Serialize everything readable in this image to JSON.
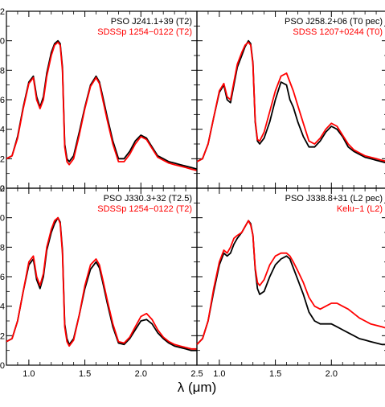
{
  "chart_data": [
    {
      "type": "line",
      "title": "",
      "xlabel": "λ (μm)",
      "ylabel": "",
      "xlim": [
        0.8,
        2.5
      ],
      "ylim": [
        0.0,
        1.2
      ],
      "grid": false,
      "legend_position": "top-right",
      "series": [
        {
          "name": "PSO J241.1+39 (T2)",
          "color": "#000000",
          "x": [
            0.8,
            0.85,
            0.9,
            0.95,
            1.0,
            1.04,
            1.07,
            1.1,
            1.13,
            1.16,
            1.2,
            1.23,
            1.26,
            1.28,
            1.3,
            1.32,
            1.34,
            1.36,
            1.4,
            1.45,
            1.5,
            1.55,
            1.6,
            1.63,
            1.66,
            1.7,
            1.75,
            1.8,
            1.85,
            1.9,
            1.95,
            2.0,
            2.05,
            2.1,
            2.15,
            2.2,
            2.25,
            2.3,
            2.35,
            2.4,
            2.45,
            2.5
          ],
          "y": [
            0.2,
            0.22,
            0.35,
            0.55,
            0.72,
            0.76,
            0.62,
            0.55,
            0.62,
            0.78,
            0.92,
            0.98,
            1.0,
            0.98,
            0.82,
            0.3,
            0.2,
            0.18,
            0.22,
            0.38,
            0.55,
            0.7,
            0.76,
            0.72,
            0.62,
            0.48,
            0.32,
            0.2,
            0.2,
            0.25,
            0.32,
            0.36,
            0.34,
            0.28,
            0.22,
            0.2,
            0.18,
            0.17,
            0.16,
            0.15,
            0.14,
            0.13
          ]
        },
        {
          "name": "SDSSp 1254−0122 (T2)",
          "color": "#ff0000",
          "x": [
            0.8,
            0.85,
            0.9,
            0.95,
            1.0,
            1.04,
            1.07,
            1.1,
            1.13,
            1.16,
            1.2,
            1.23,
            1.26,
            1.28,
            1.3,
            1.32,
            1.34,
            1.36,
            1.4,
            1.45,
            1.5,
            1.55,
            1.6,
            1.63,
            1.66,
            1.7,
            1.75,
            1.8,
            1.85,
            1.9,
            1.95,
            2.0,
            2.05,
            2.1,
            2.15,
            2.2,
            2.25,
            2.3,
            2.35,
            2.4,
            2.45,
            2.5
          ],
          "y": [
            0.2,
            0.22,
            0.34,
            0.54,
            0.71,
            0.75,
            0.6,
            0.54,
            0.6,
            0.76,
            0.9,
            0.97,
            0.99,
            0.97,
            0.8,
            0.28,
            0.18,
            0.16,
            0.2,
            0.36,
            0.54,
            0.69,
            0.75,
            0.71,
            0.6,
            0.46,
            0.3,
            0.18,
            0.18,
            0.23,
            0.3,
            0.35,
            0.33,
            0.27,
            0.21,
            0.19,
            0.17,
            0.16,
            0.15,
            0.14,
            0.13,
            0.12
          ]
        }
      ]
    },
    {
      "type": "line",
      "title": "",
      "xlabel": "λ (μm)",
      "ylabel": "",
      "xlim": [
        0.8,
        2.5
      ],
      "ylim": [
        0.0,
        1.2
      ],
      "grid": false,
      "legend_position": "top-right",
      "series": [
        {
          "name": "PSO J258.2+06 (T0 pec)",
          "color": "#000000",
          "x": [
            0.8,
            0.85,
            0.9,
            0.95,
            1.0,
            1.04,
            1.07,
            1.1,
            1.13,
            1.16,
            1.2,
            1.23,
            1.26,
            1.28,
            1.3,
            1.32,
            1.34,
            1.36,
            1.4,
            1.45,
            1.5,
            1.55,
            1.6,
            1.63,
            1.66,
            1.7,
            1.75,
            1.8,
            1.85,
            1.9,
            1.95,
            2.0,
            2.05,
            2.1,
            2.15,
            2.2,
            2.25,
            2.3,
            2.35,
            2.4,
            2.45,
            2.5
          ],
          "y": [
            0.18,
            0.2,
            0.3,
            0.48,
            0.65,
            0.7,
            0.6,
            0.58,
            0.7,
            0.82,
            0.9,
            0.96,
            1.0,
            0.98,
            0.85,
            0.45,
            0.32,
            0.3,
            0.34,
            0.45,
            0.6,
            0.72,
            0.7,
            0.6,
            0.55,
            0.45,
            0.35,
            0.28,
            0.28,
            0.32,
            0.38,
            0.42,
            0.4,
            0.35,
            0.28,
            0.25,
            0.23,
            0.21,
            0.2,
            0.19,
            0.18,
            0.17
          ]
        },
        {
          "name": "SDSS 1207+0244 (T0)",
          "color": "#ff0000",
          "x": [
            0.8,
            0.85,
            0.9,
            0.95,
            1.0,
            1.04,
            1.07,
            1.1,
            1.13,
            1.16,
            1.2,
            1.23,
            1.26,
            1.28,
            1.3,
            1.32,
            1.34,
            1.36,
            1.4,
            1.45,
            1.5,
            1.55,
            1.6,
            1.63,
            1.66,
            1.7,
            1.75,
            1.8,
            1.85,
            1.9,
            1.95,
            2.0,
            2.05,
            2.1,
            2.15,
            2.2,
            2.25,
            2.3,
            2.35,
            2.4,
            2.45,
            2.5
          ],
          "y": [
            0.18,
            0.2,
            0.3,
            0.48,
            0.66,
            0.71,
            0.62,
            0.6,
            0.72,
            0.84,
            0.92,
            0.97,
            0.99,
            0.97,
            0.84,
            0.46,
            0.33,
            0.32,
            0.38,
            0.52,
            0.66,
            0.76,
            0.78,
            0.72,
            0.66,
            0.56,
            0.44,
            0.32,
            0.3,
            0.34,
            0.4,
            0.44,
            0.42,
            0.36,
            0.3,
            0.26,
            0.24,
            0.22,
            0.21,
            0.2,
            0.19,
            0.18
          ]
        }
      ]
    },
    {
      "type": "line",
      "title": "",
      "xlabel": "λ (μm)",
      "ylabel": "",
      "xlim": [
        0.8,
        2.5
      ],
      "ylim": [
        0.0,
        1.2
      ],
      "grid": false,
      "legend_position": "top-right",
      "series": [
        {
          "name": "PSO J330.3+32 (T2.5)",
          "color": "#000000",
          "x": [
            0.8,
            0.85,
            0.9,
            0.95,
            1.0,
            1.04,
            1.07,
            1.1,
            1.13,
            1.16,
            1.2,
            1.23,
            1.26,
            1.28,
            1.3,
            1.32,
            1.34,
            1.36,
            1.4,
            1.45,
            1.5,
            1.55,
            1.6,
            1.63,
            1.66,
            1.7,
            1.75,
            1.8,
            1.85,
            1.9,
            1.95,
            2.0,
            2.05,
            2.1,
            2.15,
            2.2,
            2.25,
            2.3,
            2.35,
            2.4,
            2.45,
            2.5
          ],
          "y": [
            0.16,
            0.18,
            0.3,
            0.5,
            0.68,
            0.72,
            0.58,
            0.52,
            0.6,
            0.78,
            0.9,
            0.96,
            1.0,
            0.97,
            0.78,
            0.28,
            0.18,
            0.14,
            0.18,
            0.34,
            0.52,
            0.65,
            0.7,
            0.66,
            0.56,
            0.42,
            0.26,
            0.15,
            0.14,
            0.18,
            0.24,
            0.3,
            0.31,
            0.28,
            0.22,
            0.18,
            0.15,
            0.13,
            0.12,
            0.11,
            0.1,
            0.1
          ]
        },
        {
          "name": "SDSSp 1254−0122 (T2)",
          "color": "#ff0000",
          "x": [
            0.8,
            0.85,
            0.9,
            0.95,
            1.0,
            1.04,
            1.07,
            1.1,
            1.13,
            1.16,
            1.2,
            1.23,
            1.26,
            1.28,
            1.3,
            1.32,
            1.34,
            1.36,
            1.4,
            1.45,
            1.5,
            1.55,
            1.6,
            1.63,
            1.66,
            1.7,
            1.75,
            1.8,
            1.85,
            1.9,
            1.95,
            2.0,
            2.05,
            2.1,
            2.15,
            2.2,
            2.25,
            2.3,
            2.35,
            2.4,
            2.45,
            2.5
          ],
          "y": [
            0.16,
            0.18,
            0.3,
            0.5,
            0.7,
            0.74,
            0.6,
            0.54,
            0.62,
            0.8,
            0.92,
            0.98,
            1.0,
            0.96,
            0.76,
            0.26,
            0.16,
            0.13,
            0.17,
            0.34,
            0.54,
            0.68,
            0.72,
            0.68,
            0.58,
            0.44,
            0.28,
            0.16,
            0.15,
            0.19,
            0.26,
            0.33,
            0.35,
            0.31,
            0.24,
            0.19,
            0.16,
            0.14,
            0.13,
            0.12,
            0.11,
            0.11
          ]
        }
      ]
    },
    {
      "type": "line",
      "title": "",
      "xlabel": "λ (μm)",
      "ylabel": "",
      "xlim": [
        0.8,
        2.5
      ],
      "ylim": [
        0.0,
        1.2
      ],
      "grid": false,
      "legend_position": "top-right",
      "series": [
        {
          "name": "PSO J338.8+31 (L2 pec)",
          "color": "#000000",
          "x": [
            0.8,
            0.85,
            0.9,
            0.95,
            1.0,
            1.04,
            1.07,
            1.1,
            1.13,
            1.16,
            1.2,
            1.23,
            1.26,
            1.28,
            1.3,
            1.32,
            1.34,
            1.36,
            1.4,
            1.45,
            1.5,
            1.55,
            1.6,
            1.63,
            1.66,
            1.7,
            1.75,
            1.8,
            1.85,
            1.9,
            1.95,
            2.0,
            2.05,
            2.1,
            2.15,
            2.2,
            2.25,
            2.3,
            2.35,
            2.4,
            2.45,
            2.5
          ],
          "y": [
            0.14,
            0.18,
            0.3,
            0.5,
            0.68,
            0.76,
            0.74,
            0.76,
            0.82,
            0.86,
            0.9,
            0.94,
            0.98,
            0.96,
            0.88,
            0.65,
            0.52,
            0.48,
            0.5,
            0.6,
            0.68,
            0.72,
            0.74,
            0.72,
            0.66,
            0.58,
            0.48,
            0.36,
            0.3,
            0.28,
            0.28,
            0.28,
            0.26,
            0.24,
            0.22,
            0.2,
            0.18,
            0.17,
            0.16,
            0.15,
            0.14,
            0.14
          ]
        },
        {
          "name": "Kelu−1 (L2)",
          "color": "#ff0000",
          "x": [
            0.8,
            0.85,
            0.9,
            0.95,
            1.0,
            1.04,
            1.07,
            1.1,
            1.13,
            1.16,
            1.2,
            1.23,
            1.26,
            1.28,
            1.3,
            1.32,
            1.34,
            1.36,
            1.4,
            1.45,
            1.5,
            1.55,
            1.6,
            1.63,
            1.66,
            1.7,
            1.75,
            1.8,
            1.85,
            1.9,
            1.95,
            2.0,
            2.05,
            2.1,
            2.15,
            2.2,
            2.25,
            2.3,
            2.35,
            2.4,
            2.45,
            2.5
          ],
          "y": [
            0.14,
            0.18,
            0.3,
            0.52,
            0.7,
            0.78,
            0.76,
            0.8,
            0.86,
            0.88,
            0.9,
            0.94,
            0.98,
            0.95,
            0.88,
            0.66,
            0.56,
            0.54,
            0.58,
            0.68,
            0.74,
            0.76,
            0.76,
            0.74,
            0.7,
            0.64,
            0.56,
            0.46,
            0.4,
            0.38,
            0.4,
            0.42,
            0.42,
            0.4,
            0.38,
            0.35,
            0.32,
            0.3,
            0.28,
            0.27,
            0.26,
            0.25
          ]
        }
      ]
    }
  ]
}
